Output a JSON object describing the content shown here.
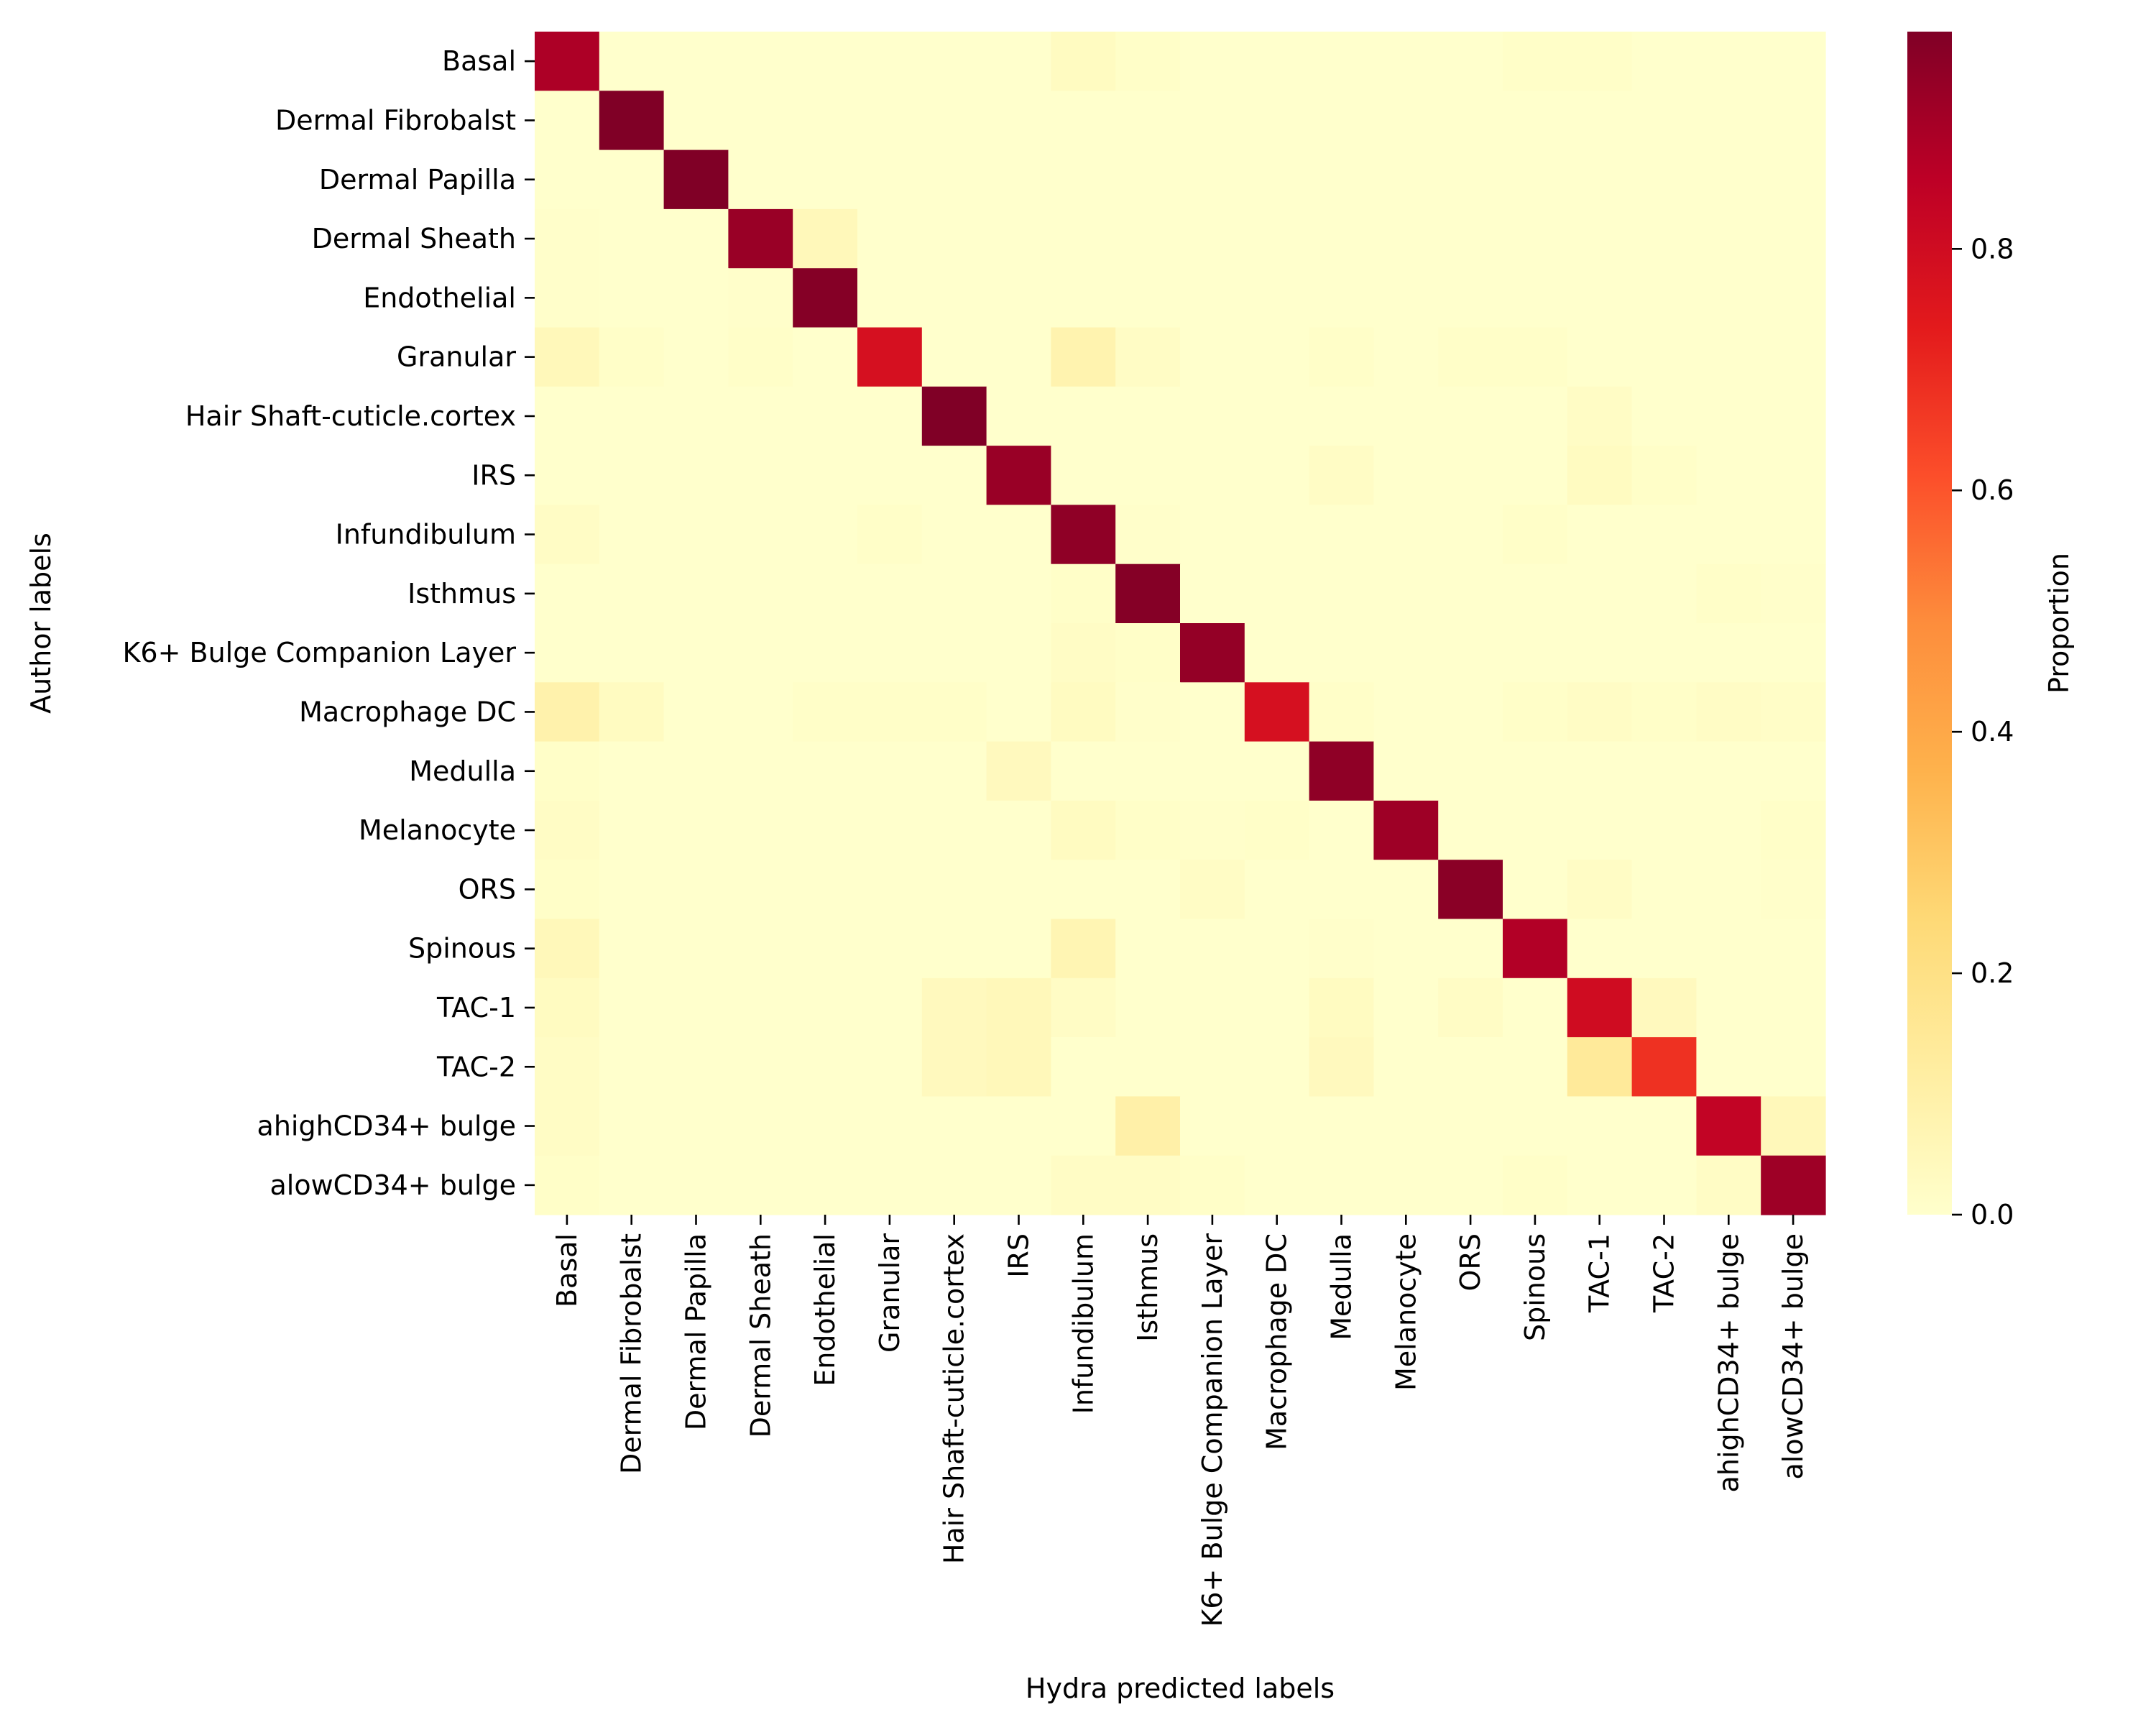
{
  "chart_data": {
    "type": "heatmap",
    "title": "",
    "xlabel": "Hydra predicted labels",
    "ylabel": "Author labels",
    "colorbar_label": "Proportion",
    "colorbar_ticks": [
      0.0,
      0.2,
      0.4,
      0.6,
      0.8
    ],
    "colorbar_tick_labels": [
      "0.0",
      "0.2",
      "0.4",
      "0.6",
      "0.8"
    ],
    "colorbar_range": [
      0,
      0.98
    ],
    "colormap": "YlOrRd",
    "color_stops": [
      "#ffffcc",
      "#ffeda0",
      "#fed976",
      "#feb24c",
      "#fd8d3c",
      "#fc4e2a",
      "#e31a1c",
      "#bd0026",
      "#800026"
    ],
    "x_categories": [
      "Basal",
      "Dermal Fibrobalst",
      "Dermal Papilla",
      "Dermal Sheath",
      "Endothelial",
      "Granular",
      "Hair Shaft-cuticle.cortex",
      "IRS",
      "Infundibulum",
      "Isthmus",
      "K6+ Bulge Companion Layer",
      "Macrophage DC",
      "Medulla",
      "Melanocyte",
      "ORS",
      "Spinous",
      "TAC-1",
      "TAC-2",
      "ahighCD34+ bulge",
      "alowCD34+ bulge"
    ],
    "y_categories": [
      "Basal",
      "Dermal Fibrobalst",
      "Dermal Papilla",
      "Dermal Sheath",
      "Endothelial",
      "Granular",
      "Hair Shaft-cuticle.cortex",
      "IRS",
      "Infundibulum",
      "Isthmus",
      "K6+ Bulge Companion Layer",
      "Macrophage DC",
      "Medulla",
      "Melanocyte",
      "ORS",
      "Spinous",
      "TAC-1",
      "TAC-2",
      "ahighCD34+ bulge",
      "alowCD34+ bulge"
    ],
    "values": [
      [
        0.89,
        0,
        0,
        0,
        0,
        0,
        0,
        0,
        0.03,
        0.01,
        0,
        0,
        0,
        0,
        0,
        0.01,
        0.01,
        0,
        0,
        0
      ],
      [
        0,
        0.98,
        0,
        0,
        0,
        0,
        0,
        0,
        0,
        0,
        0,
        0,
        0,
        0,
        0,
        0,
        0,
        0,
        0,
        0
      ],
      [
        0,
        0,
        0.98,
        0,
        0,
        0,
        0,
        0,
        0,
        0,
        0,
        0,
        0,
        0,
        0,
        0,
        0,
        0,
        0,
        0
      ],
      [
        0.005,
        0,
        0,
        0.93,
        0.05,
        0,
        0,
        0,
        0,
        0,
        0,
        0,
        0,
        0,
        0,
        0,
        0,
        0,
        0,
        0
      ],
      [
        0.005,
        0,
        0,
        0.005,
        0.97,
        0,
        0,
        0,
        0,
        0,
        0,
        0,
        0,
        0,
        0,
        0,
        0,
        0,
        0,
        0
      ],
      [
        0.05,
        0.01,
        0,
        0.01,
        0,
        0.78,
        0,
        0,
        0.08,
        0.02,
        0,
        0,
        0.01,
        0,
        0.01,
        0.01,
        0,
        0,
        0,
        0
      ],
      [
        0,
        0,
        0,
        0,
        0,
        0,
        0.98,
        0,
        0,
        0,
        0,
        0,
        0,
        0,
        0,
        0,
        0.02,
        0,
        0,
        0
      ],
      [
        0,
        0,
        0,
        0,
        0,
        0,
        0,
        0.93,
        0,
        0,
        0,
        0,
        0.02,
        0,
        0,
        0,
        0.03,
        0.01,
        0,
        0
      ],
      [
        0.02,
        0,
        0,
        0,
        0,
        0.01,
        0,
        0,
        0.95,
        0.005,
        0,
        0,
        0,
        0,
        0,
        0.01,
        0,
        0,
        0,
        0
      ],
      [
        0,
        0,
        0,
        0,
        0,
        0,
        0,
        0,
        0.01,
        0.97,
        0,
        0,
        0,
        0,
        0,
        0,
        0,
        0,
        0.01,
        0.005
      ],
      [
        0,
        0,
        0,
        0,
        0,
        0,
        0,
        0,
        0.02,
        0.01,
        0.94,
        0,
        0,
        0,
        0,
        0,
        0,
        0,
        0,
        0
      ],
      [
        0.09,
        0.03,
        0,
        0,
        0.01,
        0.01,
        0.01,
        0,
        0.03,
        0.005,
        0,
        0.78,
        0.01,
        0,
        0,
        0.01,
        0.02,
        0.01,
        0.02,
        0.015
      ],
      [
        0.01,
        0,
        0,
        0,
        0,
        0,
        0,
        0.04,
        0,
        0,
        0,
        0,
        0.95,
        0,
        0,
        0,
        0,
        0,
        0,
        0
      ],
      [
        0.02,
        0,
        0,
        0,
        0,
        0,
        0,
        0,
        0.03,
        0.01,
        0.005,
        0.01,
        0,
        0.92,
        0,
        0,
        0,
        0,
        0,
        0.01
      ],
      [
        0.01,
        0,
        0,
        0,
        0,
        0,
        0,
        0,
        0,
        0,
        0.02,
        0,
        0,
        0,
        0.96,
        0,
        0.02,
        0,
        0,
        0.005
      ],
      [
        0.05,
        0,
        0,
        0,
        0,
        0,
        0,
        0,
        0.07,
        0,
        0,
        0,
        0.005,
        0,
        0,
        0.88,
        0,
        0,
        0,
        0
      ],
      [
        0.03,
        0,
        0,
        0,
        0,
        0,
        0.04,
        0.05,
        0.02,
        0,
        0,
        0,
        0.03,
        0,
        0.02,
        0,
        0.8,
        0.04,
        0,
        0
      ],
      [
        0.02,
        0,
        0,
        0,
        0,
        0,
        0.04,
        0.05,
        0,
        0,
        0,
        0,
        0.04,
        0,
        0,
        0,
        0.14,
        0.68,
        0,
        0
      ],
      [
        0.02,
        0,
        0,
        0,
        0,
        0,
        0,
        0,
        0,
        0.1,
        0,
        0,
        0,
        0,
        0,
        0,
        0,
        0,
        0.84,
        0.05
      ],
      [
        0.01,
        0,
        0,
        0,
        0,
        0,
        0,
        0,
        0.02,
        0.02,
        0.01,
        0,
        0,
        0,
        0,
        0.01,
        0,
        0,
        0.02,
        0.92
      ]
    ],
    "grid": false,
    "legend": "colorbar-right"
  }
}
